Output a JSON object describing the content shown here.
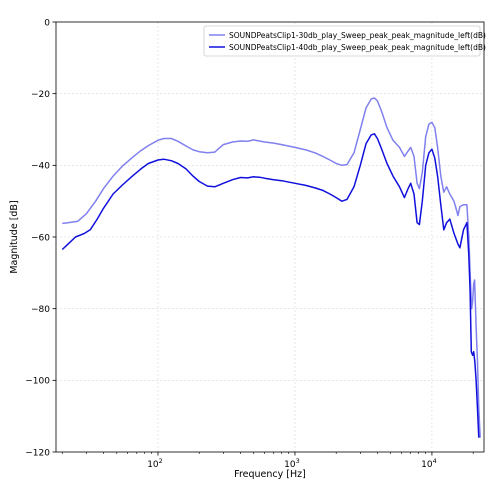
{
  "chart_data": {
    "type": "line",
    "title": "",
    "xlabel": "Frequency [Hz]",
    "ylabel": "Magnitude [dB]",
    "xscale": "log",
    "xlim": [
      18,
      24000
    ],
    "ylim": [
      -120,
      0
    ],
    "yticks": [
      0,
      -20,
      -40,
      -60,
      -80,
      -100,
      -120
    ],
    "ytick_labels": [
      "0",
      "−20",
      "−40",
      "−60",
      "−80",
      "−100",
      "−120"
    ],
    "xticks": [
      {
        "value": 100,
        "base": "10",
        "exp": "2"
      },
      {
        "value": 1000,
        "base": "10",
        "exp": "3"
      },
      {
        "value": 10000,
        "base": "10",
        "exp": "4"
      }
    ],
    "grid": true,
    "legend_position": "top-right",
    "series": [
      {
        "name": "SOUNDPeatsClip1-30db_play_Sweep_peak_peak_magnitude_left(dB)",
        "color": "#8080ee",
        "points": [
          [
            20,
            -56.2
          ],
          [
            22,
            -56.0
          ],
          [
            26,
            -55.6
          ],
          [
            30,
            -53.5
          ],
          [
            35,
            -50.0
          ],
          [
            40,
            -46.5
          ],
          [
            47,
            -43.0
          ],
          [
            55,
            -40.2
          ],
          [
            65,
            -37.8
          ],
          [
            75,
            -35.9
          ],
          [
            85,
            -34.5
          ],
          [
            100,
            -33.0
          ],
          [
            110,
            -32.5
          ],
          [
            125,
            -32.5
          ],
          [
            140,
            -33.3
          ],
          [
            160,
            -34.6
          ],
          [
            180,
            -35.7
          ],
          [
            200,
            -36.2
          ],
          [
            230,
            -36.5
          ],
          [
            260,
            -36.3
          ],
          [
            300,
            -34.2
          ],
          [
            350,
            -33.5
          ],
          [
            400,
            -33.2
          ],
          [
            450,
            -33.3
          ],
          [
            500,
            -32.9
          ],
          [
            550,
            -33.2
          ],
          [
            600,
            -33.5
          ],
          [
            700,
            -33.8
          ],
          [
            800,
            -34.2
          ],
          [
            1000,
            -35.0
          ],
          [
            1200,
            -35.7
          ],
          [
            1400,
            -36.5
          ],
          [
            1600,
            -37.5
          ],
          [
            1800,
            -38.5
          ],
          [
            2000,
            -39.5
          ],
          [
            2200,
            -40.0
          ],
          [
            2400,
            -39.8
          ],
          [
            2700,
            -36.5
          ],
          [
            3000,
            -30.0
          ],
          [
            3300,
            -24.0
          ],
          [
            3600,
            -21.5
          ],
          [
            3800,
            -21.2
          ],
          [
            4000,
            -22.0
          ],
          [
            4300,
            -25.0
          ],
          [
            4700,
            -29.5
          ],
          [
            5200,
            -33.0
          ],
          [
            5800,
            -35.0
          ],
          [
            6300,
            -37.5
          ],
          [
            6700,
            -36.0
          ],
          [
            7000,
            -35.0
          ],
          [
            7400,
            -37.5
          ],
          [
            7800,
            -45.0
          ],
          [
            8100,
            -46.5
          ],
          [
            8500,
            -42.0
          ],
          [
            9000,
            -32.0
          ],
          [
            9500,
            -28.5
          ],
          [
            10000,
            -28.0
          ],
          [
            10500,
            -29.5
          ],
          [
            11000,
            -35.0
          ],
          [
            11600,
            -43.0
          ],
          [
            12200,
            -47.5
          ],
          [
            12800,
            -46.0
          ],
          [
            13500,
            -48.0
          ],
          [
            14500,
            -50.0
          ],
          [
            15500,
            -54.0
          ],
          [
            16000,
            -51.5
          ],
          [
            17000,
            -51.0
          ],
          [
            18000,
            -51.0
          ],
          [
            18600,
            -60.0
          ],
          [
            19000,
            -70.0
          ],
          [
            19500,
            -80.0
          ],
          [
            19800,
            -78.0
          ],
          [
            20200,
            -73.0
          ],
          [
            20500,
            -72.0
          ],
          [
            21000,
            -85.0
          ],
          [
            21500,
            -95.0
          ],
          [
            22000,
            -108.0
          ],
          [
            22500,
            -116.0
          ]
        ]
      },
      {
        "name": "SOUNDPeatsClip1-40db_play_Sweep_peak_peak_magnitude_left(dB)",
        "color": "#1010dd",
        "points": [
          [
            20,
            -63.5
          ],
          [
            22,
            -62.0
          ],
          [
            25,
            -60.0
          ],
          [
            29,
            -59.0
          ],
          [
            32,
            -58.0
          ],
          [
            36,
            -55.0
          ],
          [
            40,
            -52.0
          ],
          [
            47,
            -48.0
          ],
          [
            55,
            -45.5
          ],
          [
            65,
            -43.0
          ],
          [
            75,
            -41.0
          ],
          [
            85,
            -39.5
          ],
          [
            100,
            -38.5
          ],
          [
            110,
            -38.3
          ],
          [
            125,
            -38.7
          ],
          [
            140,
            -39.5
          ],
          [
            160,
            -41.0
          ],
          [
            180,
            -43.0
          ],
          [
            200,
            -44.5
          ],
          [
            230,
            -45.8
          ],
          [
            260,
            -46.0
          ],
          [
            300,
            -45.0
          ],
          [
            350,
            -44.0
          ],
          [
            400,
            -43.4
          ],
          [
            450,
            -43.5
          ],
          [
            500,
            -43.2
          ],
          [
            550,
            -43.3
          ],
          [
            600,
            -43.6
          ],
          [
            700,
            -44.0
          ],
          [
            800,
            -44.3
          ],
          [
            1000,
            -45.0
          ],
          [
            1200,
            -45.6
          ],
          [
            1400,
            -46.3
          ],
          [
            1600,
            -47.0
          ],
          [
            1800,
            -48.0
          ],
          [
            2000,
            -49.0
          ],
          [
            2200,
            -50.0
          ],
          [
            2400,
            -49.5
          ],
          [
            2700,
            -46.0
          ],
          [
            3000,
            -40.0
          ],
          [
            3300,
            -34.0
          ],
          [
            3600,
            -31.5
          ],
          [
            3800,
            -31.2
          ],
          [
            4000,
            -32.5
          ],
          [
            4300,
            -35.5
          ],
          [
            4700,
            -39.5
          ],
          [
            5200,
            -43.0
          ],
          [
            5800,
            -46.0
          ],
          [
            6300,
            -49.0
          ],
          [
            6700,
            -46.5
          ],
          [
            7000,
            -45.0
          ],
          [
            7400,
            -48.0
          ],
          [
            7800,
            -56.0
          ],
          [
            8100,
            -56.5
          ],
          [
            8500,
            -50.0
          ],
          [
            9000,
            -40.0
          ],
          [
            9500,
            -36.5
          ],
          [
            10000,
            -35.5
          ],
          [
            10500,
            -38.0
          ],
          [
            11000,
            -43.0
          ],
          [
            11600,
            -51.0
          ],
          [
            12200,
            -58.0
          ],
          [
            12800,
            -56.0
          ],
          [
            13500,
            -55.0
          ],
          [
            14500,
            -59.0
          ],
          [
            15500,
            -62.0
          ],
          [
            16000,
            -63.0
          ],
          [
            17000,
            -58.0
          ],
          [
            18000,
            -56.0
          ],
          [
            18600,
            -65.0
          ],
          [
            19000,
            -75.0
          ],
          [
            19400,
            -92.0
          ],
          [
            19800,
            -93.0
          ],
          [
            20200,
            -92.0
          ],
          [
            20600,
            -95.0
          ],
          [
            21000,
            -100.0
          ],
          [
            21500,
            -108.0
          ],
          [
            22000,
            -116.0
          ]
        ]
      }
    ]
  }
}
